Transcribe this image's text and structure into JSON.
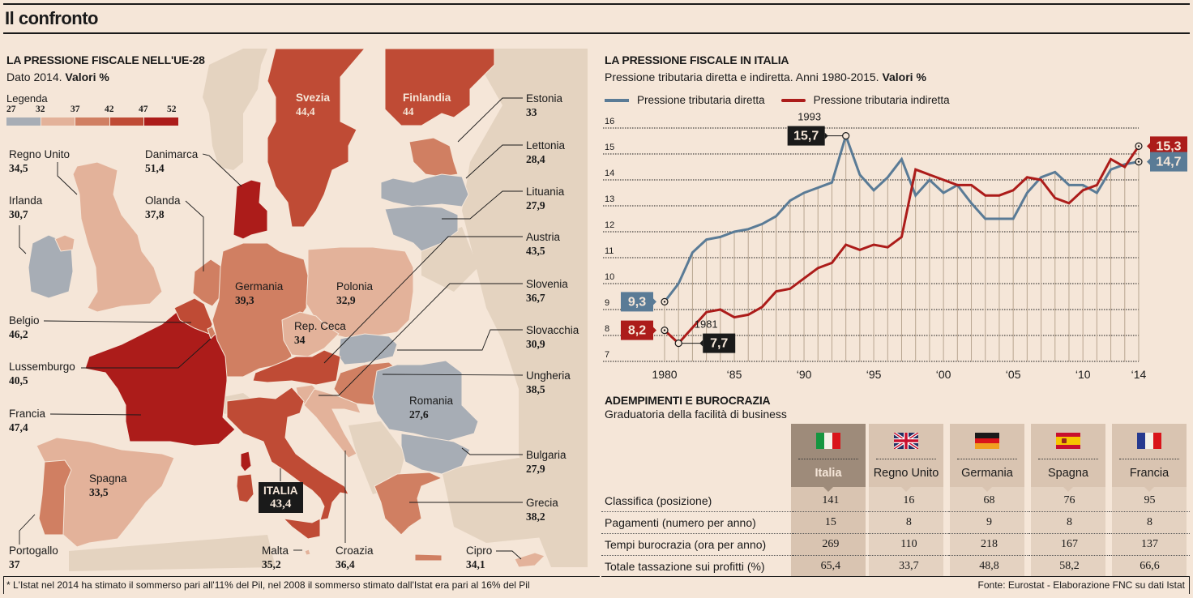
{
  "page": {
    "title": "Il confronto",
    "footnote": "* L'Istat nel 2014 ha stimato il sommerso pari all'11% del Pil, nel 2008 il sommerso stimato dall'Istat era pari al 16% del Pil",
    "source": "Fonte: Eurostat - Elaborazione FNC su dati Istat"
  },
  "map": {
    "title": "LA PRESSIONE FISCALE NELL'UE-28",
    "subtitle_plain": "Dato 2014. ",
    "subtitle_bold": "Valori %",
    "legend": {
      "label": "Legenda",
      "ticks": [
        "27",
        "32",
        "37",
        "42",
        "47",
        "52"
      ],
      "colors": [
        "#a7adb5",
        "#e3b29a",
        "#d07f62",
        "#bf4b35",
        "#ac1c1a"
      ]
    },
    "colors": {
      "non_eu": "#e4d3c0",
      "sea": "#f5e6d8"
    },
    "countries": [
      {
        "name": "Regno Unito",
        "value": "34,5"
      },
      {
        "name": "Irlanda",
        "value": "30,7"
      },
      {
        "name": "Danimarca",
        "value": "51,4"
      },
      {
        "name": "Olanda",
        "value": "37,8"
      },
      {
        "name": "Belgio",
        "value": "46,2"
      },
      {
        "name": "Lussemburgo",
        "value": "40,5"
      },
      {
        "name": "Francia",
        "value": "47,4"
      },
      {
        "name": "Spagna",
        "value": "33,5"
      },
      {
        "name": "Portogallo",
        "value": "37"
      },
      {
        "name": "Svezia",
        "value": "44,4"
      },
      {
        "name": "Finlandia",
        "value": "44"
      },
      {
        "name": "Estonia",
        "value": "33"
      },
      {
        "name": "Lettonia",
        "value": "28,4"
      },
      {
        "name": "Lituania",
        "value": "27,9"
      },
      {
        "name": "Austria",
        "value": "43,5"
      },
      {
        "name": "Slovenia",
        "value": "36,7"
      },
      {
        "name": "Slovacchia",
        "value": "30,9"
      },
      {
        "name": "Ungheria",
        "value": "38,5"
      },
      {
        "name": "Bulgaria",
        "value": "27,9"
      },
      {
        "name": "Grecia",
        "value": "38,2"
      },
      {
        "name": "Cipro",
        "value": "34,1"
      },
      {
        "name": "Germania",
        "value": "39,3"
      },
      {
        "name": "Polonia",
        "value": "32,9"
      },
      {
        "name": "Rep. Ceca",
        "value": "34"
      },
      {
        "name": "Romania",
        "value": "27,6"
      },
      {
        "name": "ITALIA",
        "value": "43,4"
      },
      {
        "name": "Malta",
        "value": "35,2"
      },
      {
        "name": "Croazia",
        "value": "36,4"
      }
    ]
  },
  "chart_data": {
    "type": "line",
    "title": "LA PRESSIONE FISCALE IN ITALIA",
    "subtitle_plain": "Pressione tributaria diretta e indiretta. Anni 1980-2015. ",
    "subtitle_bold": "Valori %",
    "xlabel": "",
    "ylabel": "",
    "ylim": [
      7,
      16
    ],
    "xlim": [
      1980,
      2014
    ],
    "yticks": [
      "16",
      "15",
      "14",
      "13",
      "12",
      "11",
      "10",
      "9",
      "8",
      "7"
    ],
    "xticks": [
      {
        "year": 1980,
        "label": "1980"
      },
      {
        "year": 1985,
        "label": "'85"
      },
      {
        "year": 1990,
        "label": "'90"
      },
      {
        "year": 1995,
        "label": "'95"
      },
      {
        "year": 2000,
        "label": "'00"
      },
      {
        "year": 2005,
        "label": "'05"
      },
      {
        "year": 2010,
        "label": "'10"
      },
      {
        "year": 2014,
        "label": "'14"
      }
    ],
    "grid": true,
    "legend_position": "top-left",
    "x": [
      1980,
      1981,
      1982,
      1983,
      1984,
      1985,
      1986,
      1987,
      1988,
      1989,
      1990,
      1991,
      1992,
      1993,
      1994,
      1995,
      1996,
      1997,
      1998,
      1999,
      2000,
      2001,
      2002,
      2003,
      2004,
      2005,
      2006,
      2007,
      2008,
      2009,
      2010,
      2011,
      2012,
      2013,
      2014
    ],
    "series": [
      {
        "name": "Pressione tributaria diretta",
        "color": "#5a7b96",
        "values": [
          9.3,
          10.0,
          11.2,
          11.7,
          11.8,
          12.0,
          12.1,
          12.3,
          12.6,
          13.2,
          13.5,
          13.7,
          13.9,
          15.7,
          14.2,
          13.6,
          14.1,
          14.8,
          13.4,
          14.0,
          13.5,
          13.8,
          13.1,
          12.5,
          12.5,
          12.5,
          13.5,
          14.1,
          14.3,
          13.8,
          13.8,
          13.5,
          14.4,
          14.6,
          14.7
        ]
      },
      {
        "name": "Pressione tributaria indiretta",
        "color": "#ac1c1a",
        "values": [
          8.2,
          7.7,
          8.3,
          8.9,
          9.0,
          8.7,
          8.8,
          9.1,
          9.7,
          9.8,
          10.2,
          10.6,
          10.8,
          11.5,
          11.3,
          11.5,
          11.4,
          11.8,
          14.4,
          14.2,
          14.0,
          13.8,
          13.8,
          13.4,
          13.4,
          13.6,
          14.1,
          14.0,
          13.3,
          13.1,
          13.6,
          13.8,
          14.8,
          14.5,
          15.3
        ]
      }
    ],
    "annotations": [
      {
        "series": 0,
        "year": 1980,
        "label": "9,3",
        "style": "series"
      },
      {
        "series": 1,
        "year": 1980,
        "label": "8,2",
        "style": "series"
      },
      {
        "series": 0,
        "year": 1993,
        "label": "15,7",
        "caption": "1993",
        "style": "dark"
      },
      {
        "series": 1,
        "year": 1981,
        "label": "7,7",
        "caption": "1981",
        "style": "dark"
      },
      {
        "series": 1,
        "year": 2014,
        "label": "15,3",
        "style": "series"
      },
      {
        "series": 0,
        "year": 2014,
        "label": "14,7",
        "style": "series"
      }
    ]
  },
  "business": {
    "title": "ADEMPIMENTI E BUROCRAZIA",
    "subtitle": "Graduatoria della facilità di business",
    "countries": [
      {
        "name": "Italia",
        "flag": "italy-flag-icon",
        "highlight": true
      },
      {
        "name": "Regno Unito",
        "flag": "uk-flag-icon",
        "highlight": false
      },
      {
        "name": "Germania",
        "flag": "germany-flag-icon",
        "highlight": false
      },
      {
        "name": "Spagna",
        "flag": "spain-flag-icon",
        "highlight": false
      },
      {
        "name": "Francia",
        "flag": "france-flag-icon",
        "highlight": false
      }
    ],
    "rows": [
      {
        "label": "Classifica (posizione)",
        "values": [
          "141",
          "16",
          "68",
          "76",
          "95"
        ]
      },
      {
        "label": "Pagamenti (numero per anno)",
        "values": [
          "15",
          "8",
          "9",
          "8",
          "8"
        ]
      },
      {
        "label": "Tempi burocrazia (ora per anno)",
        "values": [
          "269",
          "110",
          "218",
          "167",
          "137"
        ]
      },
      {
        "label": "Totale tassazione sui profitti (%)",
        "values": [
          "65,4",
          "33,7",
          "48,8",
          "58,2",
          "66,6"
        ]
      }
    ]
  }
}
